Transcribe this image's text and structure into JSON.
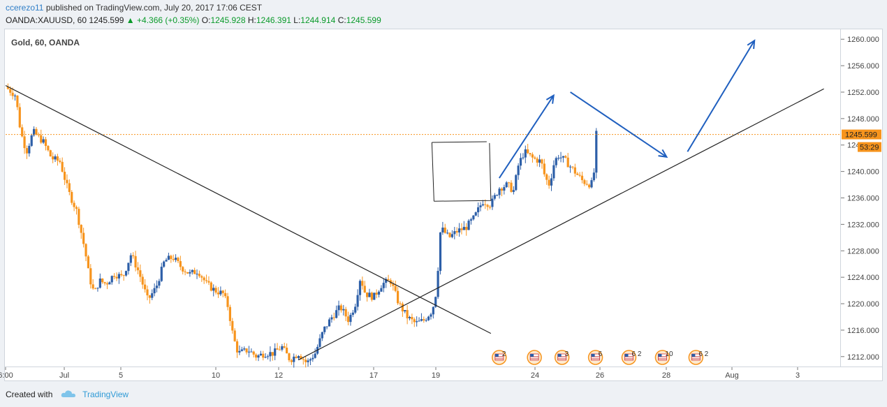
{
  "header": {
    "author": "ccerezo11",
    "published_text": "published on TradingView.com, July 20, 2017 17:06 CEST",
    "symbol": "OANDA:XAUUSD, 60",
    "last": "1245.599",
    "change": "+4.366 (+0.35%)",
    "open_label": "O:",
    "open": "1245.928",
    "high_label": "H:",
    "high": "1246.391",
    "low_label": "L:",
    "low": "1244.914",
    "close_label": "C:",
    "close": "1245.599"
  },
  "legend": "Gold, 60, OANDA",
  "footer": {
    "created_with": "Created with",
    "brand": "TradingView"
  },
  "colors": {
    "up": "#2d5fa8",
    "down": "#f7941d",
    "price_line": "#f7941d",
    "arrow": "#1f5fbf",
    "trend": "#222222"
  },
  "chart_data": {
    "type": "candlestick",
    "symbol": "XAUUSD",
    "interval": "60",
    "y_axis": {
      "min": 1210.5,
      "max": 1261.5,
      "ticks": [
        "1212.000",
        "1216.000",
        "1220.000",
        "1224.000",
        "1228.000",
        "1232.000",
        "1236.000",
        "1240.000",
        "1244.000",
        "1248.000",
        "1252.000",
        "1256.000",
        "1260.000"
      ]
    },
    "x_ticks": [
      "6:00",
      "Jul",
      "5",
      "10",
      "12",
      "17",
      "19",
      "24",
      "26",
      "28",
      "Aug",
      "3"
    ],
    "current_price": 1245.599,
    "price_label": "1245.599",
    "countdown_label": "53:29",
    "path_points": [
      [
        0,
        1252.8
      ],
      [
        0.012,
        1251.5
      ],
      [
        0.018,
        1246
      ],
      [
        0.025,
        1243
      ],
      [
        0.033,
        1246
      ],
      [
        0.045,
        1244.5
      ],
      [
        0.055,
        1242
      ],
      [
        0.065,
        1241.5
      ],
      [
        0.075,
        1237
      ],
      [
        0.085,
        1234
      ],
      [
        0.095,
        1228
      ],
      [
        0.1,
        1224
      ],
      [
        0.106,
        1221.5
      ],
      [
        0.112,
        1223.5
      ],
      [
        0.12,
        1223
      ],
      [
        0.13,
        1224.5
      ],
      [
        0.14,
        1224
      ],
      [
        0.15,
        1227.5
      ],
      [
        0.16,
        1224.5
      ],
      [
        0.17,
        1220.5
      ],
      [
        0.18,
        1222.5
      ],
      [
        0.19,
        1226.5
      ],
      [
        0.2,
        1227
      ],
      [
        0.21,
        1225.5
      ],
      [
        0.22,
        1224.5
      ],
      [
        0.23,
        1225
      ],
      [
        0.24,
        1223
      ],
      [
        0.25,
        1222
      ],
      [
        0.26,
        1221.5
      ],
      [
        0.266,
        1219.5
      ],
      [
        0.272,
        1215
      ],
      [
        0.278,
        1212.5
      ],
      [
        0.29,
        1213
      ],
      [
        0.3,
        1212
      ],
      [
        0.31,
        1212.5
      ],
      [
        0.32,
        1212.5
      ],
      [
        0.33,
        1213.5
      ],
      [
        0.34,
        1211.5
      ],
      [
        0.35,
        1212.5
      ],
      [
        0.36,
        1211
      ],
      [
        0.37,
        1212.5
      ],
      [
        0.38,
        1216
      ],
      [
        0.39,
        1218
      ],
      [
        0.4,
        1219.5
      ],
      [
        0.41,
        1217.5
      ],
      [
        0.418,
        1220
      ],
      [
        0.424,
        1224
      ],
      [
        0.43,
        1221.5
      ],
      [
        0.44,
        1221
      ],
      [
        0.45,
        1223
      ],
      [
        0.46,
        1223.5
      ],
      [
        0.47,
        1220
      ],
      [
        0.48,
        1218
      ],
      [
        0.49,
        1217
      ],
      [
        0.5,
        1217.5
      ],
      [
        0.51,
        1219
      ],
      [
        0.515,
        1222
      ],
      [
        0.52,
        1231.5
      ],
      [
        0.53,
        1230
      ],
      [
        0.54,
        1231
      ],
      [
        0.55,
        1231.5
      ],
      [
        0.56,
        1233
      ],
      [
        0.57,
        1235.5
      ],
      [
        0.58,
        1235
      ],
      [
        0.59,
        1237.5
      ],
      [
        0.6,
        1238
      ],
      [
        0.607,
        1237
      ],
      [
        0.613,
        1241
      ],
      [
        0.62,
        1243
      ],
      [
        0.63,
        1242
      ],
      [
        0.64,
        1241.5
      ],
      [
        0.645,
        1239
      ],
      [
        0.65,
        1238
      ],
      [
        0.655,
        1241
      ],
      [
        0.66,
        1242.5
      ],
      [
        0.67,
        1241.5
      ],
      [
        0.68,
        1240
      ],
      [
        0.69,
        1238.5
      ],
      [
        0.7,
        1238
      ],
      [
        0.703,
        1239.5
      ],
      [
        0.706,
        1245.6
      ]
    ],
    "trendlines": [
      {
        "from": [
          0,
          1253
        ],
        "to": [
          0.58,
          1215.5
        ]
      },
      {
        "from": [
          0.35,
          1211.5
        ],
        "to": [
          0.978,
          1252.5
        ]
      }
    ],
    "box": {
      "top": 1244.4,
      "bottom": 1235.5,
      "x1": 0.512,
      "x2": 0.58
    },
    "arrows": [
      {
        "from": [
          0.59,
          1239
        ],
        "to": [
          0.655,
          1251.5
        ]
      },
      {
        "from": [
          0.675,
          1252
        ],
        "to": [
          0.79,
          1242.2
        ]
      },
      {
        "from": [
          0.815,
          1243
        ],
        "to": [
          0.895,
          1259.8
        ]
      }
    ],
    "event_markers": [
      {
        "x": 0.59,
        "count": "2"
      },
      {
        "x": 0.632,
        "count": ""
      },
      {
        "x": 0.665,
        "count": "3"
      },
      {
        "x": 0.705,
        "count": "6"
      },
      {
        "x": 0.745,
        "count": "6 2"
      },
      {
        "x": 0.785,
        "count": "10"
      },
      {
        "x": 0.825,
        "count": "6 2"
      }
    ]
  }
}
